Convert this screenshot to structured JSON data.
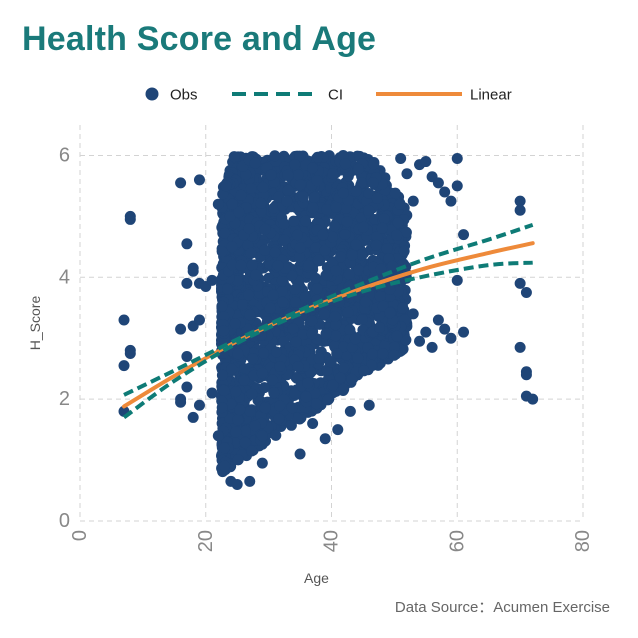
{
  "colors": {
    "title": "#1a7a7a",
    "obs": "#1f4577",
    "ci": "#0e7b76",
    "linear": "#ee8a3a",
    "grid": "#d3d3d3",
    "tick_text": "#888888",
    "axis_label": "#555555"
  },
  "source": "Data Source：Acumen Exercise",
  "chart_data": {
    "type": "scatter",
    "title": "Health Score and Age",
    "xlabel": "Age",
    "ylabel": "H_Score",
    "xlim": [
      0,
      80
    ],
    "ylim": [
      0,
      6.5
    ],
    "x_ticks": [
      "0",
      "20",
      "40",
      "60",
      "80"
    ],
    "y_ticks": [
      "0",
      "2",
      "4",
      "6"
    ],
    "x_tick_values": [
      0,
      20,
      40,
      60,
      80
    ],
    "y_tick_values": [
      0,
      2,
      4,
      6
    ],
    "grid": true,
    "legend_position": "top",
    "legend": [
      {
        "key": "obs",
        "label": "Obs",
        "style": "marker"
      },
      {
        "key": "ci",
        "label": "CI",
        "style": "dashed"
      },
      {
        "key": "linear",
        "label": "Linear",
        "style": "solid"
      }
    ],
    "dense_region": {
      "x_range": [
        22,
        52
      ],
      "y_range": [
        0.8,
        6.0
      ]
    },
    "series": [
      {
        "key": "obs",
        "type": "scatter",
        "points": [
          [
            7,
            3.3
          ],
          [
            7,
            2.55
          ],
          [
            7,
            1.8
          ],
          [
            8,
            5.0
          ],
          [
            8,
            4.95
          ],
          [
            8,
            2.8
          ],
          [
            8,
            2.75
          ],
          [
            16,
            5.55
          ],
          [
            16,
            3.15
          ],
          [
            16,
            2.0
          ],
          [
            16,
            1.95
          ],
          [
            17,
            4.55
          ],
          [
            17,
            3.9
          ],
          [
            17,
            2.7
          ],
          [
            17,
            2.2
          ],
          [
            18,
            4.15
          ],
          [
            18,
            4.1
          ],
          [
            18,
            3.2
          ],
          [
            18,
            1.7
          ],
          [
            19,
            5.6
          ],
          [
            19,
            3.9
          ],
          [
            19,
            3.3
          ],
          [
            19,
            1.9
          ],
          [
            20,
            3.85
          ],
          [
            21,
            3.95
          ],
          [
            21,
            2.1
          ],
          [
            22,
            5.2
          ],
          [
            22,
            1.4
          ],
          [
            23,
            0.9
          ],
          [
            23,
            1.2
          ],
          [
            24,
            0.65
          ],
          [
            25,
            0.6
          ],
          [
            27,
            0.65
          ],
          [
            29,
            0.95
          ],
          [
            35,
            1.1
          ],
          [
            37,
            1.6
          ],
          [
            39,
            1.35
          ],
          [
            41,
            1.5
          ],
          [
            43,
            1.8
          ],
          [
            46,
            1.9
          ],
          [
            51,
            5.95
          ],
          [
            52,
            5.7
          ],
          [
            53,
            5.25
          ],
          [
            54,
            5.85
          ],
          [
            55,
            5.9
          ],
          [
            56,
            5.65
          ],
          [
            57,
            5.55
          ],
          [
            58,
            5.4
          ],
          [
            59,
            5.25
          ],
          [
            60,
            5.95
          ],
          [
            60,
            5.5
          ],
          [
            53,
            3.4
          ],
          [
            54,
            2.95
          ],
          [
            55,
            3.1
          ],
          [
            56,
            2.85
          ],
          [
            57,
            3.3
          ],
          [
            58,
            3.15
          ],
          [
            59,
            3.0
          ],
          [
            61,
            3.1
          ],
          [
            61,
            4.7
          ],
          [
            60,
            3.95
          ],
          [
            70,
            5.25
          ],
          [
            70,
            5.1
          ],
          [
            70,
            3.9
          ],
          [
            70,
            2.85
          ],
          [
            71,
            2.45
          ],
          [
            71,
            2.4
          ],
          [
            71,
            2.05
          ],
          [
            71,
            3.75
          ],
          [
            72,
            2.0
          ]
        ]
      },
      {
        "key": "linear",
        "type": "line",
        "points": [
          [
            7,
            1.88
          ],
          [
            15,
            2.38
          ],
          [
            25,
            2.95
          ],
          [
            35,
            3.43
          ],
          [
            45,
            3.82
          ],
          [
            55,
            4.15
          ],
          [
            65,
            4.4
          ],
          [
            72,
            4.56
          ]
        ]
      },
      {
        "key": "ci_upper",
        "type": "line",
        "points": [
          [
            7,
            2.07
          ],
          [
            15,
            2.47
          ],
          [
            25,
            2.98
          ],
          [
            35,
            3.46
          ],
          [
            45,
            3.9
          ],
          [
            55,
            4.3
          ],
          [
            65,
            4.62
          ],
          [
            72,
            4.86
          ]
        ]
      },
      {
        "key": "ci_lower",
        "type": "line",
        "points": [
          [
            7,
            1.7
          ],
          [
            15,
            2.3
          ],
          [
            25,
            2.92
          ],
          [
            35,
            3.4
          ],
          [
            45,
            3.77
          ],
          [
            55,
            4.02
          ],
          [
            65,
            4.2
          ],
          [
            72,
            4.24
          ]
        ]
      }
    ]
  }
}
